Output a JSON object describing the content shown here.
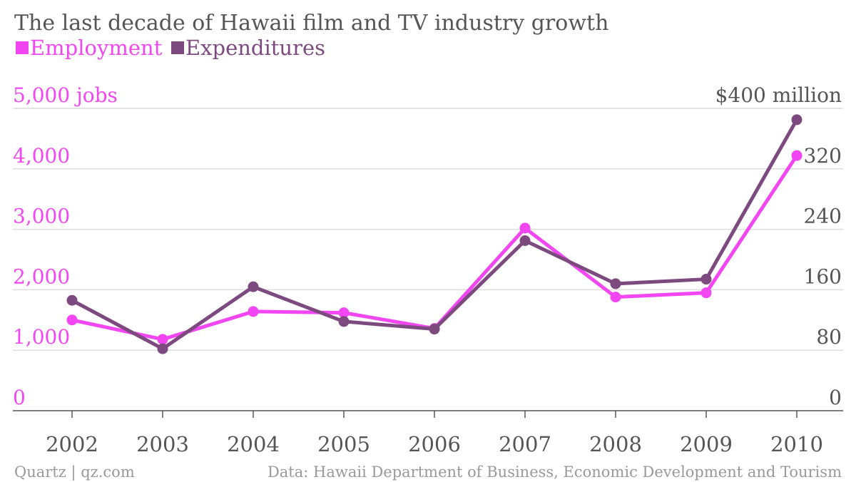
{
  "chart_data": {
    "type": "line",
    "title": "The last decade of Hawaii film and TV industry growth",
    "categories": [
      "2002",
      "2003",
      "2004",
      "2005",
      "2006",
      "2007",
      "2008",
      "2009",
      "2010"
    ],
    "series": [
      {
        "name": "Employment",
        "axis": "left",
        "color": "#f246f2",
        "values": [
          1500,
          1180,
          1640,
          1620,
          1360,
          3020,
          1880,
          1950,
          4220
        ]
      },
      {
        "name": "Expenditures",
        "axis": "right",
        "color": "#7d4a7f",
        "values": [
          146,
          82,
          164,
          118,
          108,
          225,
          168,
          174,
          385
        ]
      }
    ],
    "y_left": {
      "ylim": [
        0,
        5000
      ],
      "ticks": [
        0,
        1000,
        2000,
        3000,
        4000,
        5000
      ],
      "tick_labels": [
        "0",
        "1,000",
        "2,000",
        "3,000",
        "4,000",
        "5,000 jobs"
      ],
      "color": "#f246f2"
    },
    "y_right": {
      "ylim": [
        0,
        400
      ],
      "ticks": [
        0,
        80,
        160,
        240,
        320,
        400
      ],
      "tick_labels": [
        "0",
        "80",
        "160",
        "240",
        "320",
        "$400 million"
      ],
      "color": "#555555"
    },
    "grid": true,
    "legend_placement": "top-left"
  },
  "footer": {
    "source_left": "Quartz | qz.com",
    "source_right": "Data: Hawaii Department of Business, Economic Development and Tourism"
  }
}
